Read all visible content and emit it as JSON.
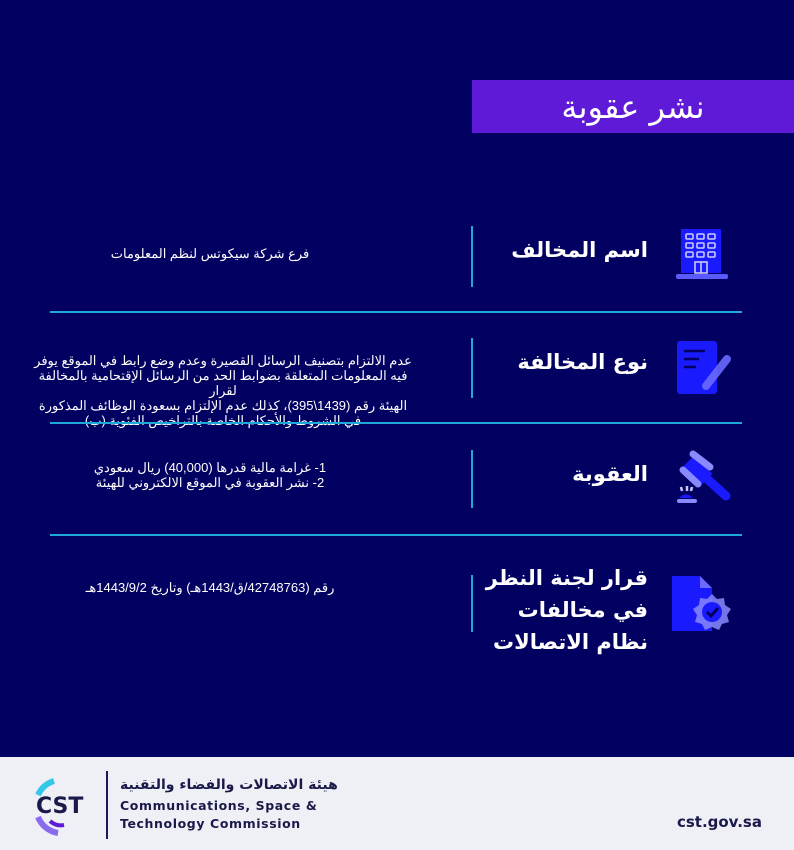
{
  "title": "نشر عقوبة",
  "rows": [
    {
      "label": "اسم المخالف",
      "icon": "building-icon",
      "value_lines": [
        "فرع شركة سيكوتس لنظم المعلومات"
      ]
    },
    {
      "label": "نوع المخالفة",
      "icon": "document-edit-icon",
      "value_lines": [
        "عدم الالتزام بتصنيف الرسائل القصيرة وعدم وضع رابط في الموقع يوفر",
        "فيه المعلومات المتعلقة بضوابط الحد من الرسائل الإقتحامية بالمخالفة لقرار",
        "الهيئة رقم (1439\\395)، كذلك عدم الإلتزام بسعودة الوظائف المذكورة",
        "في الشروط والأحكام الخاصة بالتراخيص الفئوية (ب)"
      ]
    },
    {
      "label": "العقوبة",
      "icon": "gavel-icon",
      "value_lines": [
        "1- غرامة مالية قدرها (40,000) ريال سعودي",
        "2- نشر العقوبة في الموقع الالكتروني للهيئة"
      ]
    },
    {
      "label_lines": [
        "قرار لجنة النظر",
        "في مخالفات",
        "نظام الاتصالات"
      ],
      "icon": "verified-document-icon",
      "value_lines": [
        "رقم (42748763/ق/1443هـ) وتاريخ 1443/9/2هـ"
      ]
    }
  ],
  "colors": {
    "background": "#020060",
    "title_bg": "#5e1ad6",
    "divider": "#1fa8d8",
    "icon": "#1a1aff",
    "footer_bg": "#eff0f6"
  },
  "footer": {
    "logo_text": "CST",
    "org_ar": "هيئة الاتصالات والفضاء والتقنية",
    "org_en_1": "Communications, Space &",
    "org_en_2": "Technology Commission",
    "website": "cst.gov.sa"
  }
}
